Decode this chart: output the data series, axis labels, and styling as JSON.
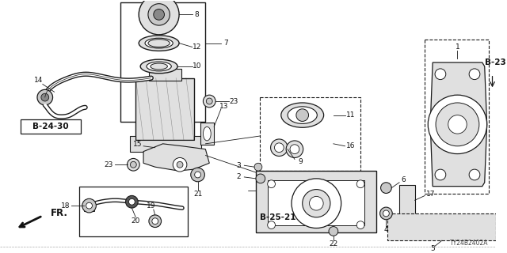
{
  "bg_color": "#ffffff",
  "line_color": "#1a1a1a",
  "gray_fill": "#c8c8c8",
  "light_gray": "#e0e0e0",
  "diagram_id": "TY24B2402A",
  "ref_b23": "B-23",
  "ref_b24": "B-24-30",
  "ref_b25": "B-25-21",
  "fr_label": "FR.",
  "label_fontsize": 6.5,
  "bold_fontsize": 7.5
}
